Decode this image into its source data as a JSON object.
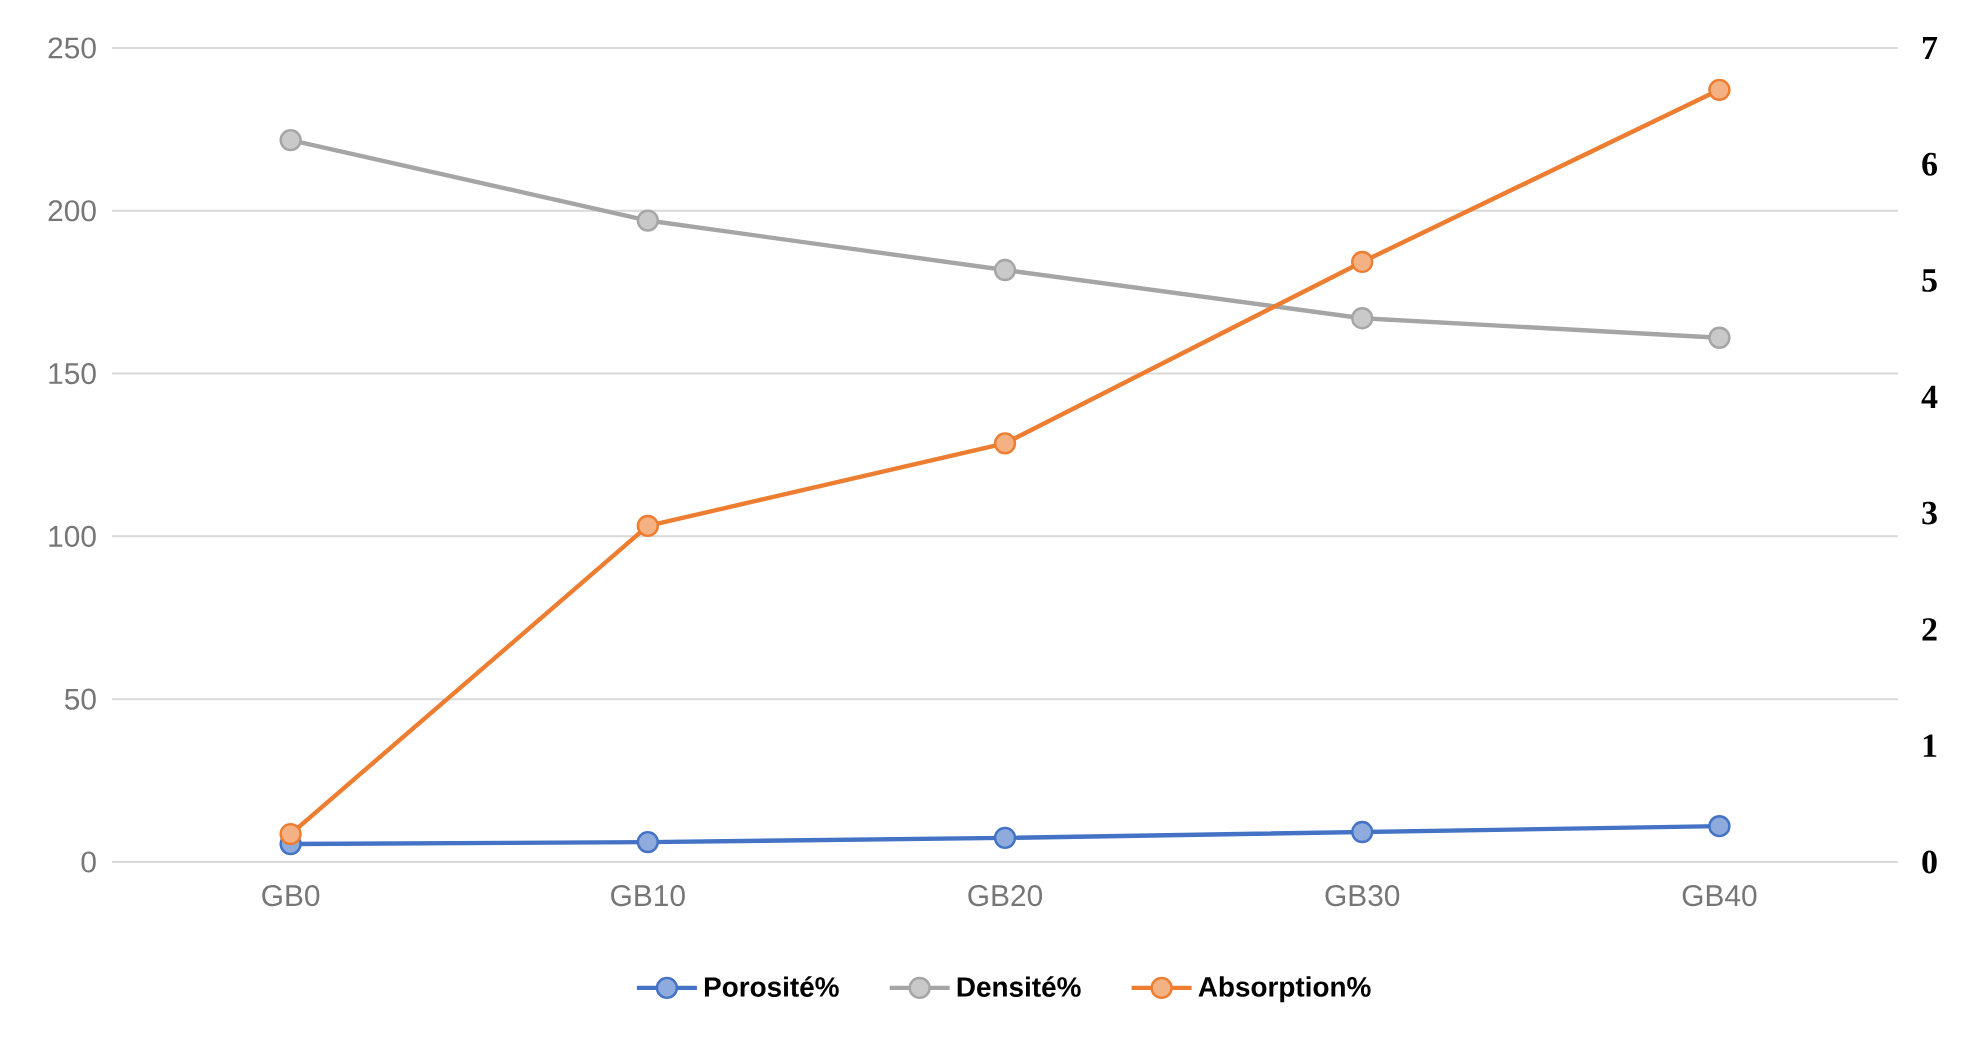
{
  "chart_data": {
    "type": "line",
    "categories": [
      "GB0",
      "GB10",
      "GB20",
      "GB30",
      "GB40"
    ],
    "series": [
      {
        "name": "Porosité%",
        "color": "#4472c4",
        "values": [
          5.5,
          6.1,
          7.4,
          9.2,
          11
        ]
      },
      {
        "name": "Densité%",
        "color": "#a5a5a5",
        "values": [
          221.7,
          197,
          181.8,
          167,
          161
        ]
      },
      {
        "name": "Absorption%",
        "color": "#ed7d31",
        "axis": "y2",
        "values": [
          0.24,
          2.89,
          3.6,
          5.16,
          6.64
        ]
      }
    ],
    "ylim": [
      0,
      250
    ],
    "yticks": [
      0,
      50,
      100,
      150,
      200,
      250
    ],
    "y2lim": [
      0,
      7
    ],
    "y2ticks": [
      0,
      1,
      2,
      3,
      4,
      5,
      6,
      7
    ],
    "grid": "y",
    "legend": "bottom",
    "marker": "circle",
    "line_style": "solid"
  }
}
